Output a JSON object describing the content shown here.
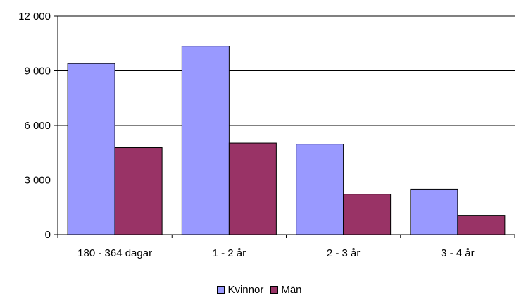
{
  "chart_data": {
    "type": "bar",
    "categories": [
      "180 - 364 dagar",
      "1 - 2 år",
      "2 - 3 år",
      "3 - 4 år"
    ],
    "series": [
      {
        "name": "Kvinnor",
        "values": [
          9400,
          10350,
          4970,
          2500
        ],
        "color": "#9999ff"
      },
      {
        "name": "Män",
        "values": [
          4780,
          5030,
          2220,
          1060
        ],
        "color": "#993366"
      }
    ],
    "ylim": [
      0,
      12000
    ],
    "yticks": [
      0,
      3000,
      6000,
      9000,
      12000
    ],
    "ytick_labels": [
      "0",
      "3 000",
      "6 000",
      "9 000",
      "12 000"
    ],
    "grid": true,
    "legend_position": "bottom-center"
  }
}
